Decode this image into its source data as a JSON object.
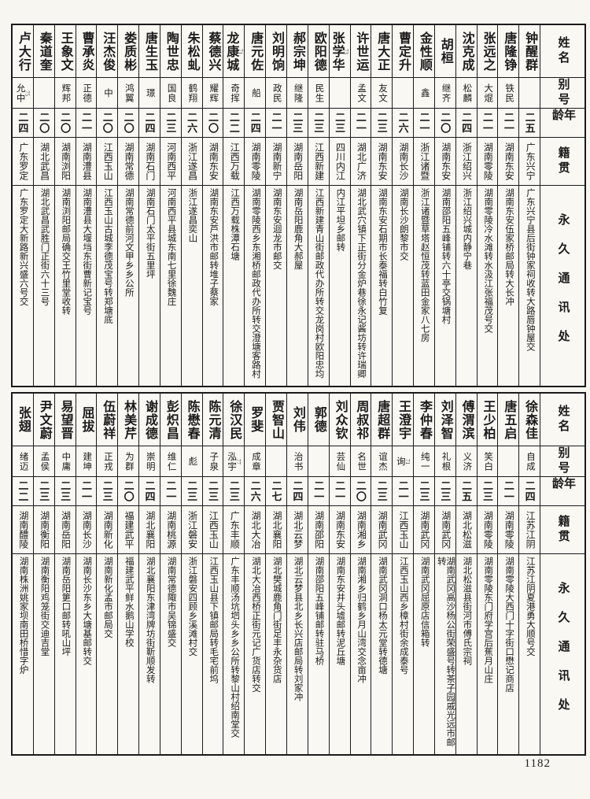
{
  "page": {
    "number": "1182"
  },
  "headers": {
    "name": "姓名",
    "alias": "别号",
    "age": "年龄",
    "native": "籍贯",
    "address": "永久通讯处"
  },
  "tables": [
    {
      "people": [
        {
          "name": "卢大行",
          "name_sup": "",
          "alias": "允中",
          "alias_sup": "75",
          "age": "二四",
          "native": "广东罗定",
          "address": "广东罗定大新路新兴盛六号交"
        },
        {
          "name": "秦道奎",
          "name_sup": "",
          "alias": "",
          "alias_sup": "",
          "age": "二〇",
          "native": "湖北武昌",
          "address": "湖北武昌武胜门正街六十三号"
        },
        {
          "name": "王象文",
          "name_sup": "",
          "alias": "辉邦",
          "alias_sup": "",
          "age": "二〇",
          "native": "湖南浏阳",
          "address": "湖南浏阳邮局确交王竹里堂收转"
        },
        {
          "name": "曹承炎",
          "name_sup": "",
          "alias": "正德",
          "alias_sup": "",
          "age": "二一",
          "native": "湖南澧县",
          "address": "湖南澧县大堰垱东街曹新记宝号"
        },
        {
          "name": "汪杰俊",
          "name_sup": "",
          "alias": "中",
          "alias_sup": "",
          "age": "二〇",
          "native": "江西玉山",
          "address": "江西玉山古城李德茂宝号转郑塘底"
        },
        {
          "name": "娄质彬",
          "name_sup": "",
          "alias": "鸿翼",
          "alias_sup": "",
          "age": "二〇",
          "native": "湖南常德",
          "address": "湖南常德前河文甲乡乡公所"
        },
        {
          "name": "唐生玉",
          "name_sup": "",
          "alias": "璟",
          "alias_sup": "",
          "age": "二四",
          "native": "湖南石门",
          "address": "湖南石门太平街五里坪"
        },
        {
          "name": "陶世忠",
          "name_sup": "",
          "alias": "国良",
          "alias_sup": "",
          "age": "二三",
          "native": "河南西平",
          "address": "河南西平县城东南七里徐魏庄"
        },
        {
          "name": "朱松虬",
          "name_sup": "",
          "alias": "鹤翔",
          "alias_sup": "",
          "age": "二六",
          "native": "浙江遂昌",
          "address": "浙江遂昌奕山"
        },
        {
          "name": "蔡德兴",
          "name_sup": "",
          "alias": "耀辉",
          "alias_sup": "",
          "age": "二〇",
          "native": "湖南东安",
          "address": "湖南东安芦洪市邮转堆子蔡家"
        },
        {
          "name": "龙康城",
          "name_sup": "71",
          "alias": "奇挥",
          "alias_sup": "",
          "age": "二二",
          "native": "江西万载",
          "address": "江西万载株潭石塘"
        },
        {
          "name": "唐元佐",
          "name_sup": "",
          "alias": "船",
          "alias_sup": "",
          "age": "二四",
          "native": "湖南零陵",
          "address": "湖南零陵西乡东湘桥邮政代办所转交澄塘客路村"
        },
        {
          "name": "刘明饷",
          "name_sup": "",
          "alias": "政民",
          "alias_sup": "",
          "age": "二一",
          "native": "湖南新宁",
          "address": "湖南东安迴龙市邮交"
        },
        {
          "name": "郝宗坤",
          "name_sup": "",
          "alias": "继隆",
          "alias_sup": "",
          "age": "二三",
          "native": "湖南岳阳",
          "address": "湖南岳阳鹿角大郝屋"
        },
        {
          "name": "欧阳德",
          "name_sup": "",
          "alias": "民生",
          "alias_sup": "",
          "age": "二三",
          "native": "江西新建",
          "address": "江西新建青山街邮政代办所转交龙岗村欧阳忠均"
        },
        {
          "name": "张学华",
          "name_sup": "73",
          "alias": "",
          "alias_sup": "",
          "age": "二三",
          "native": "四川内江",
          "address": "内江平坦乡邮转"
        },
        {
          "name": "许世运",
          "name_sup": "",
          "alias": "孟文",
          "alias_sup": "",
          "age": "二一",
          "native": "湖北广济",
          "address": "湖北武穴镇下正街分金炉巷徐永记酱坊转许瑞卿"
        },
        {
          "name": "唐大正",
          "name_sup": "",
          "alias": "友文",
          "alias_sup": "",
          "age": "二三",
          "native": "湖南东安",
          "address": "湖南东安石期市长泰福转白竹复"
        },
        {
          "name": "曹定升",
          "name_sup": "",
          "alias": "",
          "alias_sup": "",
          "age": "二六",
          "native": "湖南长沙",
          "address": "湖南长沙朗黎市交"
        },
        {
          "name": "金性顺",
          "name_sup": "",
          "alias": "鑫",
          "alias_sup": "",
          "age": "二一",
          "native": "浙江诸暨",
          "address": "浙江诸暨草塔赵恒茂转蓝田金家八七房"
        },
        {
          "name": "胡桓",
          "name_sup": "",
          "alias": "继齐",
          "alias_sup": "",
          "age": "二〇",
          "native": "湖南东安",
          "address": "湖南邵阳五峰铺转六十亭交锅塘村"
        },
        {
          "name": "沈克成",
          "name_sup": "",
          "alias": "松麟",
          "alias_sup": "",
          "age": "二四",
          "native": "浙江绍兴",
          "address": "浙江绍兴城内静宁巷"
        },
        {
          "name": "张远之",
          "name_sup": "",
          "alias": "大焜",
          "alias_sup": "",
          "age": "二一",
          "native": "湖南零陵",
          "address": "湖南零陵冷水滩转水汲江张福茂号交"
        },
        {
          "name": "唐隆铮",
          "name_sup": "",
          "alias": "铁民",
          "alias_sup": "",
          "age": "二一",
          "native": "湖南东安",
          "address": "湖南东安伍家桥邮局转大长冲"
        },
        {
          "name": "钟醒群",
          "name_sup": "",
          "alias": "",
          "alias_sup": "",
          "age": "二五",
          "native": "广东兴宁",
          "address": "广东兴宁县后街钟家祠收转大路唇钟屋交"
        }
      ]
    },
    {
      "people": [
        {
          "name": "张翅",
          "name_sup": "",
          "alias": "绪迈",
          "alias_sup": "",
          "age": "二二",
          "native": "湖南醴陵",
          "address": "湖南株洲姚家坝南田桥惜字炉"
        },
        {
          "name": "尹文蔚",
          "name_sup": "",
          "alias": "孟侯",
          "alias_sup": "",
          "age": "二三",
          "native": "湖南衡阳",
          "address": "湖南衡阳鸡笼街交迪吉堂"
        },
        {
          "name": "易望晋",
          "name_sup": "",
          "alias": "中庸",
          "alias_sup": "",
          "age": "二三",
          "native": "湖南岳阳",
          "address": "湖南岳阳筻口邮转吼山坪"
        },
        {
          "name": "屈拔",
          "name_sup": "",
          "alias": "建坤",
          "alias_sup": "",
          "age": "二一",
          "native": "湖南长沙",
          "address": "湖南长沙东乡大塘基邮转交"
        },
        {
          "name": "伍蔚祥",
          "name_sup": "",
          "alias": "正戎",
          "alias_sup": "",
          "age": "二三",
          "native": "湖南新化",
          "address": "湖南新化孟市邮局交"
        },
        {
          "name": "林美芹",
          "name_sup": "",
          "alias": "为群",
          "alias_sup": "",
          "age": "二〇",
          "native": "福建武平",
          "address": "福建武平鲜水鹅山学校"
        },
        {
          "name": "谢成德",
          "name_sup": "",
          "alias": "崇明",
          "alias_sup": "",
          "age": "二四",
          "native": "湖北襄阳",
          "address": "湖北襄阳东津湾牌坊街靳顺发转"
        },
        {
          "name": "彭炽昌",
          "name_sup": "",
          "alias": "维仁",
          "alias_sup": "",
          "age": "二一",
          "native": "湖南桃源",
          "address": "湖南常德陬市吴锦盛交"
        },
        {
          "name": "陈懋春",
          "name_sup": "",
          "alias": "彪",
          "alias_sup": "",
          "age": "二三",
          "native": "浙江磐安",
          "address": "浙江磐安四顾乡溪滩村交"
        },
        {
          "name": "陈元清",
          "name_sup": "",
          "alias": "子泉",
          "alias_sup": "",
          "age": "二三",
          "native": "江西玉山",
          "address": "江西玉山县下镇邮局转毛宅前坞"
        },
        {
          "name": "徐汉民",
          "name_sup": "",
          "alias": "泓宇",
          "alias_sup": "77",
          "age": "二三",
          "native": "广东丰顺",
          "address": "广东丰顺汤坑垇头乡乡公所转黎山村绍南堂交"
        },
        {
          "name": "罗斐",
          "name_sup": "",
          "alias": "成章",
          "alias_sup": "",
          "age": "二六",
          "native": "湖北大冶",
          "address": "湖北大冶西桥正街元记广货店转交"
        },
        {
          "name": "贾智山",
          "name_sup": "",
          "alias": "",
          "alias_sup": "",
          "age": "二七",
          "native": "湖北襄阳",
          "address": "湖北樊城鹿角门街足丰永杂货店"
        },
        {
          "name": "刘伟",
          "name_sup": "",
          "alias": "治书",
          "alias_sup": "",
          "age": "二四",
          "native": "湖北云梦",
          "address": "湖北云梦县北乡长兴店邮局转刘家冲"
        },
        {
          "name": "郭德",
          "name_sup": "",
          "alias": "",
          "alias_sup": "",
          "age": "二一",
          "native": "湖南邵阳",
          "address": "湖南邵阳五峰铺邮转驻马桥"
        },
        {
          "name": "刘众钦",
          "name_sup": "",
          "alias": "芸仙",
          "alias_sup": "",
          "age": "二一",
          "native": "湖南东安",
          "address": "湖南东安井头墟邮转泥丘塘"
        },
        {
          "name": "周叔祁",
          "name_sup": "",
          "alias": "名世",
          "alias_sup": "",
          "age": "二〇",
          "native": "湖南湘乡",
          "address": "湖南湘乡归鹤乡月山湾交念亩冲"
        },
        {
          "name": "唐超群",
          "name_sup": "",
          "alias": "谊杰",
          "alias_sup": "",
          "age": "二三",
          "native": "湖南武冈",
          "address": "湖南武冈洞口杨太元堂转德塘"
        },
        {
          "name": "王澄宇",
          "name_sup": "",
          "alias": "询",
          "alias_sup": "71",
          "age": "二一",
          "native": "江西玉山",
          "address": "江西玉山西乡樟村街余成泰号"
        },
        {
          "name": "李仲春",
          "name_sup": "",
          "alias": "纯一",
          "alias_sup": "",
          "age": "二三",
          "native": "湖南武冈",
          "address": "湖南武冈屈原店信箱转"
        },
        {
          "name": "刘泽智",
          "name_sup": "",
          "alias": "礼根",
          "alias_sup": "",
          "age": "二三",
          "native": "湖南武冈",
          "address": "湖南武冈高沙杨公街荣盛号转茶子园戚光远市邮转"
        },
        {
          "name": "傅渭滨",
          "name_sup": "",
          "alias": "义济",
          "alias_sup": "",
          "age": "二五",
          "native": "湖北松滋",
          "address": "湖北松滋县街河市傅氏宗祠"
        },
        {
          "name": "王少柏",
          "name_sup": "",
          "alias": "笑白",
          "alias_sup": "",
          "age": "二三",
          "native": "湖南零陵",
          "address": "湖南零陵东门府学宫后蕉月山庄"
        },
        {
          "name": "唐五启",
          "name_sup": "",
          "alias": "",
          "alias_sup": "",
          "age": "二一",
          "native": "湖南零陵",
          "address": "湖南零陵大西门十字街口懋记商店"
        },
        {
          "name": "徐森佳",
          "name_sup": "",
          "alias": "自成",
          "alias_sup": "",
          "age": "二四",
          "native": "江苏江阴",
          "address": "江苏江阴夏港勇大顺号交"
        }
      ]
    }
  ]
}
